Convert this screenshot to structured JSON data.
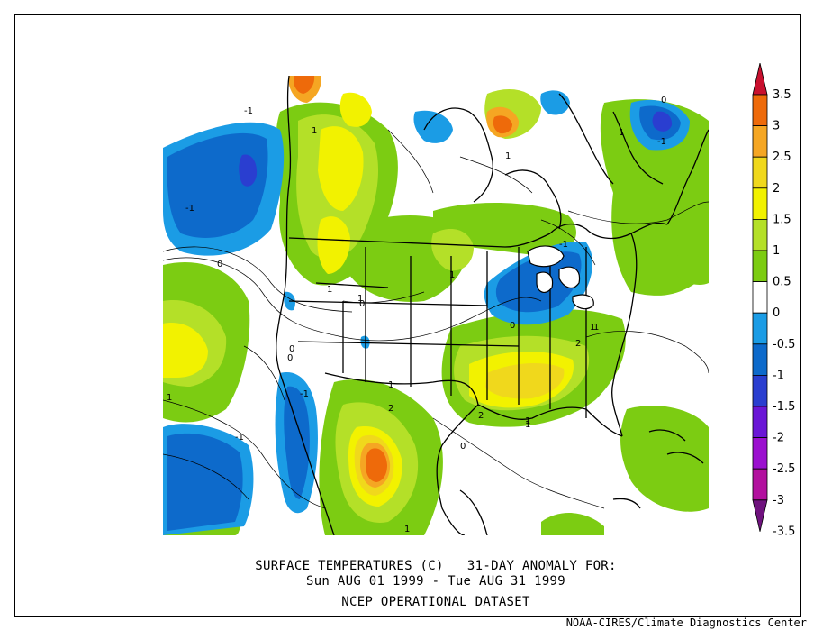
{
  "caption": {
    "line1": "SURFACE TEMPERATURES (C)   31-DAY ANOMALY FOR:",
    "line2": "Sun AUG 01 1999 - Tue AUG 31 1999",
    "line3": "NCEP OPERATIONAL DATASET"
  },
  "credit": "NOAA-CIRES/Climate Diagnostics Center",
  "colorbar": {
    "levels": [
      "3.5",
      "3",
      "2.5",
      "2",
      "1.5",
      "1",
      "0.5",
      "0",
      "-0.5",
      "-1",
      "-1.5",
      "-2",
      "-2.5",
      "-3",
      "-3.5"
    ],
    "colors": [
      "#c8102e",
      "#ee6a0a",
      "#f5a623",
      "#f0d81c",
      "#f2f200",
      "#b4e028",
      "#7ccc12",
      "#ffffff",
      "#1b9ce5",
      "#0d6acb",
      "#2a3ed0",
      "#6a16d6",
      "#9b0fcf",
      "#b2109e",
      "#6f137e"
    ]
  },
  "contour_labels": {
    "l1": "-1",
    "l2": "1",
    "l3": "-1",
    "l4": "0",
    "l5": "1",
    "l6": "1",
    "l7": "1",
    "l8": "0",
    "l9": "0",
    "l10": "-1",
    "l11": "1",
    "l12": "1",
    "l13": "0",
    "l14": "1",
    "l15": "-1",
    "l16": "0",
    "l17": "1",
    "l18": "2",
    "l19": "2",
    "l20": "1",
    "l21": "1",
    "l22": "-1",
    "l23": "-1",
    "l24": "1",
    "l25": "2",
    "l26": "1",
    "l27": "1",
    "l28": "0",
    "l29": "0"
  },
  "colors": {
    "land_line": "#000000",
    "contour_line": "#000000"
  }
}
